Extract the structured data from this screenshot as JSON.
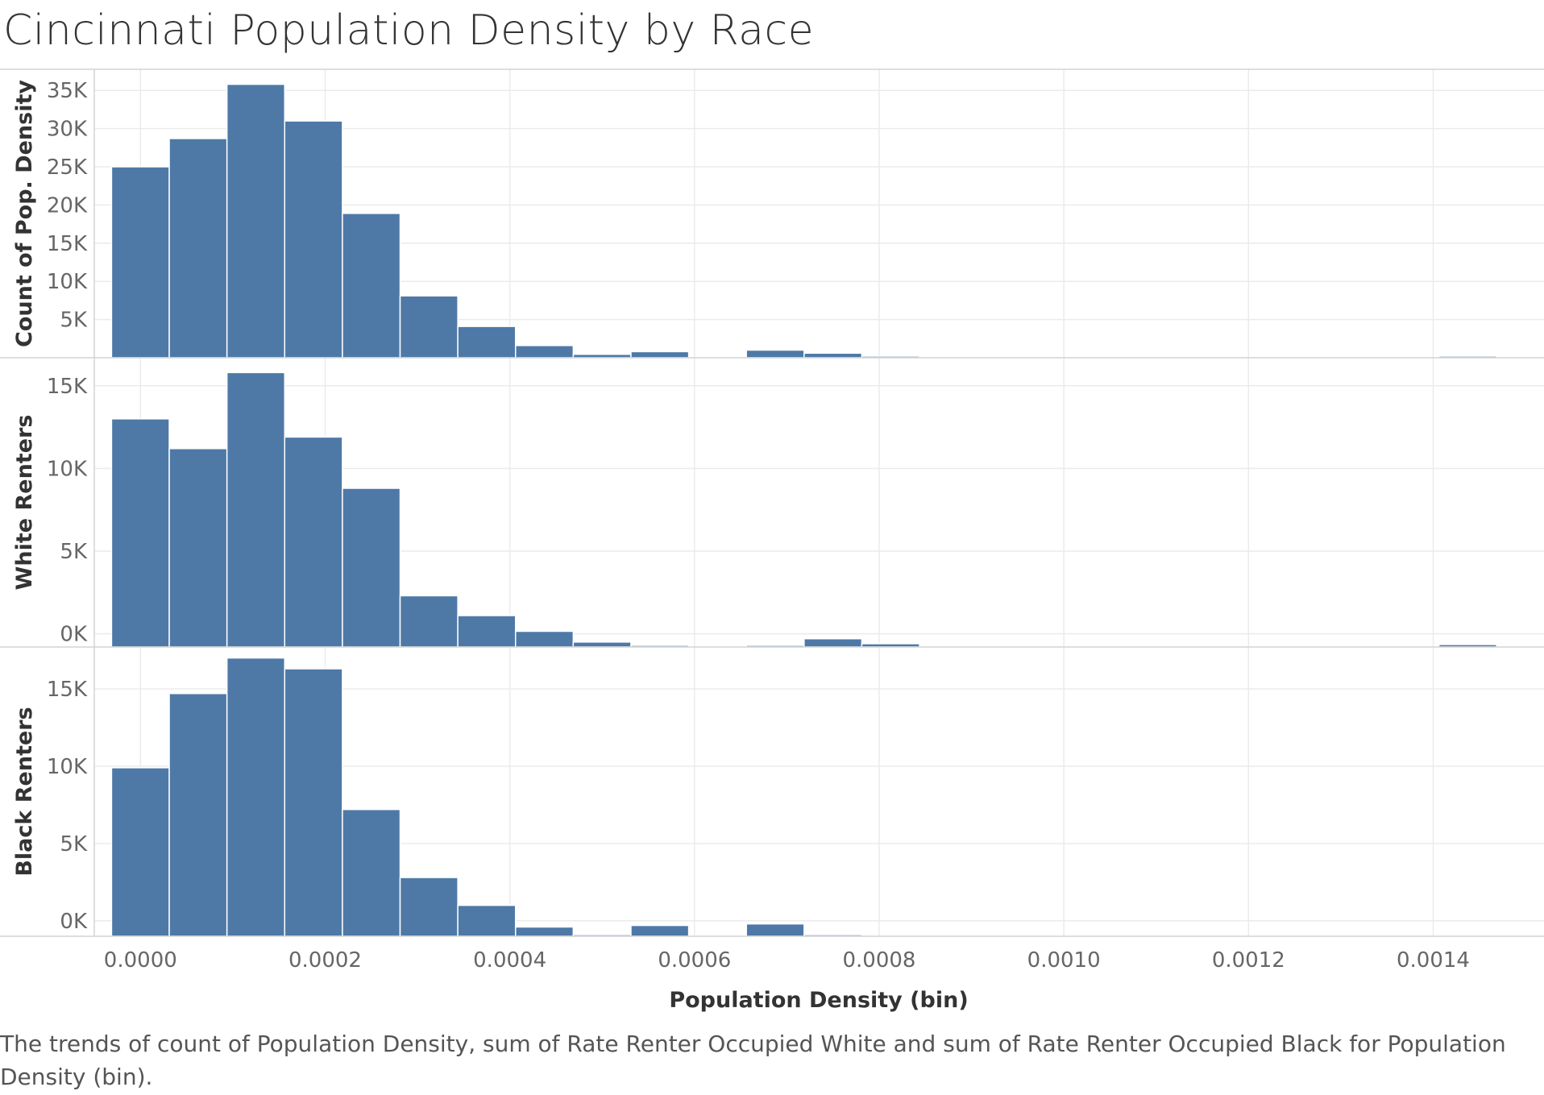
{
  "chart_data": {
    "type": "bar",
    "title": "Cincinnati Population Density by Race",
    "caption": "The trends of count of Population Density, sum of Rate Renter Occupied White and sum of Rate Renter Occupied Black for Population Density (bin).",
    "xlabel": "Population Density (bin)",
    "x_ticks": [
      "0.0000",
      "0.0002",
      "0.0004",
      "0.0006",
      "0.0008",
      "0.0010",
      "0.0012",
      "0.0014"
    ],
    "x_tick_values": [
      0,
      0.0002,
      0.0004,
      0.0006,
      0.0008,
      0.001,
      0.0012,
      0.0014
    ],
    "bin_width": 6.25e-05,
    "xlim": [
      -5e-05,
      0.00152
    ],
    "grid": true,
    "bar_color": "#4e79a7",
    "panels": [
      {
        "name": "count",
        "ylabel": "Count of Pop. Density",
        "ylim": [
          0,
          36500
        ],
        "y_ticks": [
          "5K",
          "10K",
          "15K",
          "20K",
          "25K",
          "30K",
          "35K"
        ],
        "y_tick_values": [
          5000,
          10000,
          15000,
          20000,
          25000,
          30000,
          35000
        ],
        "bins": [
          {
            "x": -3.13e-05,
            "value": 25000
          },
          {
            "x": 3.12e-05,
            "value": 28700
          },
          {
            "x": 9.37e-05,
            "value": 35800
          },
          {
            "x": 0.0001562,
            "value": 31000
          },
          {
            "x": 0.0002187,
            "value": 18900
          },
          {
            "x": 0.0002812,
            "value": 8100
          },
          {
            "x": 0.0003437,
            "value": 4100
          },
          {
            "x": 0.0004062,
            "value": 1600
          },
          {
            "x": 0.0004687,
            "value": 450
          },
          {
            "x": 0.0005312,
            "value": 800
          },
          {
            "x": 0.0006562,
            "value": 1000
          },
          {
            "x": 0.0007187,
            "value": 600
          },
          {
            "x": 0.0007812,
            "value": 200
          },
          {
            "x": 0.0014062,
            "value": 50
          }
        ]
      },
      {
        "name": "white",
        "ylabel": "White Renters",
        "ylim": [
          -800,
          16500
        ],
        "y_ticks": [
          "0K",
          "5K",
          "10K",
          "15K"
        ],
        "y_tick_values": [
          0,
          5000,
          10000,
          15000
        ],
        "bins": [
          {
            "x": -3.13e-05,
            "value": 13000
          },
          {
            "x": 3.12e-05,
            "value": 11200
          },
          {
            "x": 9.37e-05,
            "value": 15800
          },
          {
            "x": 0.0001562,
            "value": 11900
          },
          {
            "x": 0.0002187,
            "value": 8800
          },
          {
            "x": 0.0002812,
            "value": 2300
          },
          {
            "x": 0.0003437,
            "value": 1100
          },
          {
            "x": 0.0004062,
            "value": 150
          },
          {
            "x": 0.0004687,
            "value": -500
          },
          {
            "x": 0.0005312,
            "value": -700
          },
          {
            "x": 0.0006562,
            "value": -700
          },
          {
            "x": 0.0007187,
            "value": -300
          },
          {
            "x": 0.0007812,
            "value": -600
          },
          {
            "x": 0.0014062,
            "value": -650
          }
        ]
      },
      {
        "name": "black",
        "ylabel": "Black Renters",
        "ylim": [
          -1000,
          17500
        ],
        "y_ticks": [
          "0K",
          "5K",
          "10K",
          "15K"
        ],
        "y_tick_values": [
          0,
          5000,
          10000,
          15000
        ],
        "bins": [
          {
            "x": -3.13e-05,
            "value": 9900
          },
          {
            "x": 3.12e-05,
            "value": 14700
          },
          {
            "x": 9.37e-05,
            "value": 17000
          },
          {
            "x": 0.0001562,
            "value": 16300
          },
          {
            "x": 0.0002187,
            "value": 7200
          },
          {
            "x": 0.0002812,
            "value": 2800
          },
          {
            "x": 0.0003437,
            "value": 1000
          },
          {
            "x": 0.0004062,
            "value": -400
          },
          {
            "x": 0.0004687,
            "value": -900
          },
          {
            "x": 0.0005312,
            "value": -300
          },
          {
            "x": 0.0006562,
            "value": -200
          },
          {
            "x": 0.0007187,
            "value": -950
          }
        ]
      }
    ]
  }
}
